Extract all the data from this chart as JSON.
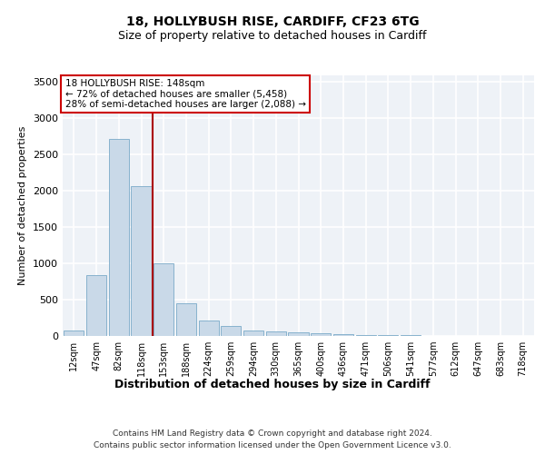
{
  "title1": "18, HOLLYBUSH RISE, CARDIFF, CF23 6TG",
  "title2": "Size of property relative to detached houses in Cardiff",
  "xlabel": "Distribution of detached houses by size in Cardiff",
  "ylabel": "Number of detached properties",
  "footer1": "Contains HM Land Registry data © Crown copyright and database right 2024.",
  "footer2": "Contains public sector information licensed under the Open Government Licence v3.0.",
  "annotation_line1": "18 HOLLYBUSH RISE: 148sqm",
  "annotation_line2": "← 72% of detached houses are smaller (5,458)",
  "annotation_line3": "28% of semi-detached houses are larger (2,088) →",
  "bar_color": "#c9d9e8",
  "bar_edge_color": "#7aaac8",
  "vline_color": "#aa0000",
  "categories": [
    "12sqm",
    "47sqm",
    "82sqm",
    "118sqm",
    "153sqm",
    "188sqm",
    "224sqm",
    "259sqm",
    "294sqm",
    "330sqm",
    "365sqm",
    "400sqm",
    "436sqm",
    "471sqm",
    "506sqm",
    "541sqm",
    "577sqm",
    "612sqm",
    "647sqm",
    "683sqm",
    "718sqm"
  ],
  "values": [
    75,
    840,
    2720,
    2060,
    1000,
    450,
    210,
    140,
    75,
    65,
    55,
    40,
    25,
    15,
    12,
    8,
    5,
    3,
    2,
    1,
    1
  ],
  "ylim": [
    0,
    3600
  ],
  "yticks": [
    0,
    500,
    1000,
    1500,
    2000,
    2500,
    3000,
    3500
  ],
  "background_color": "#eef2f7",
  "grid_color": "#ffffff",
  "title1_fontsize": 10,
  "title2_fontsize": 9,
  "ylabel_fontsize": 8,
  "xlabel_fontsize": 9,
  "tick_fontsize": 7,
  "footer_fontsize": 6.5,
  "annot_fontsize": 7.5
}
